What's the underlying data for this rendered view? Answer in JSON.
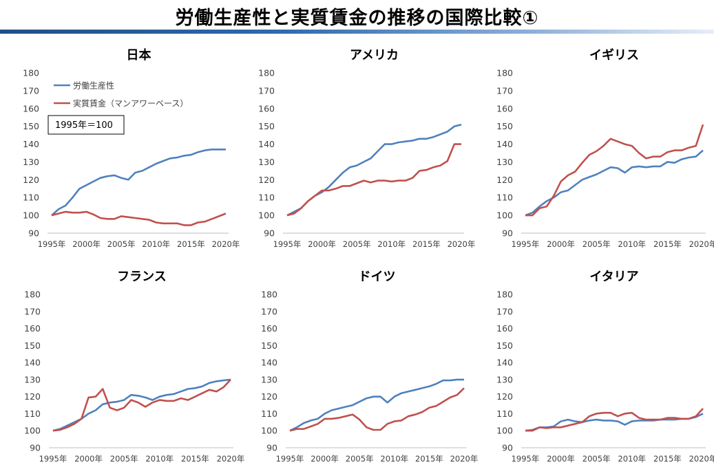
{
  "page": {
    "title": "労働生産性と実質賃金の推移の国際比較①"
  },
  "legend": {
    "series1": "労働生産性",
    "series2": "実質賃金（マンアワーベース）",
    "note": "1995年＝100"
  },
  "colors": {
    "productivity": "#4f81bd",
    "wage": "#c0504d",
    "axis": "#bfbfbf"
  },
  "chart_data": [
    {
      "type": "line",
      "title": "日本",
      "x": [
        1995,
        1996,
        1997,
        1998,
        1999,
        2000,
        2001,
        2002,
        2003,
        2004,
        2005,
        2006,
        2007,
        2008,
        2009,
        2010,
        2011,
        2012,
        2013,
        2014,
        2015,
        2016,
        2017,
        2018,
        2019,
        2020
      ],
      "xticks": [
        "1995年",
        "2000年",
        "2005年",
        "2010年",
        "2015年",
        "2020年"
      ],
      "yticks": [
        "90",
        "100",
        "110",
        "120",
        "130",
        "140",
        "150",
        "160",
        "170",
        "180"
      ],
      "ylim": [
        90,
        180
      ],
      "series": [
        {
          "name": "労働生産性",
          "values": [
            100,
            103.5,
            105.5,
            110,
            115,
            117,
            119,
            121,
            122,
            122.5,
            121,
            120,
            124,
            125,
            127,
            129,
            130.5,
            132,
            132.5,
            133.5,
            134,
            135.5,
            136.5,
            137,
            137,
            137
          ]
        },
        {
          "name": "実質賃金（マンアワーベース）",
          "values": [
            100,
            101,
            102,
            101.5,
            101.5,
            102,
            100.5,
            98.5,
            98,
            98,
            99.5,
            99,
            98.5,
            98,
            97.5,
            96,
            95.5,
            95.5,
            95.5,
            94.5,
            94.5,
            96,
            96.5,
            98,
            99.5,
            101
          ]
        }
      ]
    },
    {
      "type": "line",
      "title": "アメリカ",
      "x": [
        1995,
        1996,
        1997,
        1998,
        1999,
        2000,
        2001,
        2002,
        2003,
        2004,
        2005,
        2006,
        2007,
        2008,
        2009,
        2010,
        2011,
        2012,
        2013,
        2014,
        2015,
        2016,
        2017,
        2018,
        2019,
        2020
      ],
      "xticks": [
        "1995年",
        "2000年",
        "2005年",
        "2010年",
        "2015年",
        "2020年"
      ],
      "yticks": [
        "90",
        "100",
        "110",
        "120",
        "130",
        "140",
        "150",
        "160",
        "170",
        "180"
      ],
      "ylim": [
        90,
        180
      ],
      "series": [
        {
          "name": "労働生産性",
          "values": [
            100,
            102,
            104,
            108,
            111,
            113,
            116,
            120,
            124,
            127,
            128,
            130,
            132,
            136,
            140,
            140,
            141,
            141.5,
            142,
            143,
            143,
            144,
            145.5,
            147,
            150,
            151
          ]
        },
        {
          "name": "実質賃金（マンアワーベース）",
          "values": [
            100,
            101,
            104,
            108,
            111,
            114,
            114,
            115,
            116.5,
            116.5,
            118,
            119.5,
            118.5,
            119.5,
            119.5,
            119,
            119.5,
            119.5,
            121,
            125,
            125.5,
            127,
            128,
            130.5,
            140,
            140
          ]
        }
      ]
    },
    {
      "type": "line",
      "title": "イギリス",
      "x": [
        1995,
        1996,
        1997,
        1998,
        1999,
        2000,
        2001,
        2002,
        2003,
        2004,
        2005,
        2006,
        2007,
        2008,
        2009,
        2010,
        2011,
        2012,
        2013,
        2014,
        2015,
        2016,
        2017,
        2018,
        2019,
        2020
      ],
      "xticks": [
        "1995年",
        "2000年",
        "2005年",
        "2010年",
        "2015年",
        "2020年"
      ],
      "yticks": [
        "90",
        "100",
        "110",
        "120",
        "130",
        "140",
        "150",
        "160",
        "170",
        "180"
      ],
      "ylim": [
        90,
        180
      ],
      "series": [
        {
          "name": "労働生産性",
          "values": [
            100,
            101.5,
            105,
            108,
            110,
            113,
            114,
            117,
            120,
            121.5,
            123,
            125,
            127,
            126.5,
            124,
            127,
            127.5,
            127,
            127.5,
            127.5,
            130,
            129.5,
            131.5,
            132.5,
            133,
            136.5
          ]
        },
        {
          "name": "実質賃金（マンアワーベース）",
          "values": [
            100,
            100,
            104,
            105,
            111,
            119,
            122.5,
            124.5,
            129.5,
            134,
            136,
            139,
            143,
            141.5,
            140,
            139,
            135,
            132,
            133,
            133,
            135.5,
            136.5,
            136.5,
            138,
            139,
            151
          ]
        }
      ]
    },
    {
      "type": "line",
      "title": "フランス",
      "x": [
        1995,
        1996,
        1997,
        1998,
        1999,
        2000,
        2001,
        2002,
        2003,
        2004,
        2005,
        2006,
        2007,
        2008,
        2009,
        2010,
        2011,
        2012,
        2013,
        2014,
        2015,
        2016,
        2017,
        2018,
        2019,
        2020
      ],
      "xticks": [
        "1995年",
        "2000年",
        "2005年",
        "2010年",
        "2015年",
        "2020年"
      ],
      "yticks": [
        "90",
        "100",
        "110",
        "120",
        "130",
        "140",
        "150",
        "160",
        "170",
        "180"
      ],
      "ylim": [
        90,
        180
      ],
      "series": [
        {
          "name": "労働生産性",
          "values": [
            100,
            101,
            103,
            105,
            107,
            110,
            112,
            115.5,
            116.5,
            117,
            118,
            121,
            120.5,
            119.5,
            118,
            120,
            121,
            121.5,
            123,
            124.5,
            125,
            126,
            128,
            129,
            129.5,
            130
          ]
        },
        {
          "name": "実質賃金（マンアワーベース）",
          "values": [
            100,
            100.5,
            102,
            104,
            107,
            119.5,
            120,
            124.5,
            113.5,
            112,
            113.5,
            118,
            116.5,
            114,
            116.5,
            118,
            117.5,
            117.5,
            119,
            118,
            120,
            122,
            124,
            123,
            125.5,
            130
          ]
        }
      ]
    },
    {
      "type": "line",
      "title": "ドイツ",
      "x": [
        1995,
        1996,
        1997,
        1998,
        1999,
        2000,
        2001,
        2002,
        2003,
        2004,
        2005,
        2006,
        2007,
        2008,
        2009,
        2010,
        2011,
        2012,
        2013,
        2014,
        2015,
        2016,
        2017,
        2018,
        2019,
        2020
      ],
      "xticks": [
        "1995年",
        "2000年",
        "2005年",
        "2010年",
        "2015年",
        "2020年"
      ],
      "yticks": [
        "90",
        "100",
        "110",
        "120",
        "130",
        "140",
        "150",
        "160",
        "170",
        "180"
      ],
      "ylim": [
        90,
        180
      ],
      "series": [
        {
          "name": "労働生産性",
          "values": [
            100,
            102,
            104.5,
            106,
            107,
            110,
            112,
            113,
            114,
            115,
            117,
            119,
            120,
            120,
            116.5,
            120,
            122,
            123,
            124,
            125,
            126,
            127.5,
            129.5,
            129.5,
            130,
            130
          ]
        },
        {
          "name": "実質賃金（マンアワーベース）",
          "values": [
            100,
            101,
            101,
            102.5,
            104,
            107,
            107,
            107.5,
            108.5,
            109.5,
            106.5,
            102,
            100.5,
            100.5,
            104,
            105.5,
            106,
            108.5,
            109.5,
            111,
            113.5,
            114.5,
            117,
            119.5,
            121,
            125
          ]
        }
      ]
    },
    {
      "type": "line",
      "title": "イタリア",
      "x": [
        1995,
        1996,
        1997,
        1998,
        1999,
        2000,
        2001,
        2002,
        2003,
        2004,
        2005,
        2006,
        2007,
        2008,
        2009,
        2010,
        2011,
        2012,
        2013,
        2014,
        2015,
        2016,
        2017,
        2018,
        2019,
        2020
      ],
      "xticks": [
        "1995年",
        "2000年",
        "2005年",
        "2010年",
        "2015年",
        "2020年"
      ],
      "yticks": [
        "90",
        "100",
        "110",
        "120",
        "130",
        "140",
        "150",
        "160",
        "170",
        "180"
      ],
      "ylim": [
        90,
        180
      ],
      "series": [
        {
          "name": "労働生産性",
          "values": [
            100,
            100.5,
            102,
            102,
            102.5,
            105.5,
            106.5,
            105.5,
            105,
            106,
            106.5,
            106,
            106,
            105.5,
            103.5,
            105.5,
            106,
            106,
            106,
            106.5,
            106.5,
            106.5,
            107,
            107,
            108,
            110
          ]
        },
        {
          "name": "実質賃金（マンアワーベース）",
          "values": [
            100,
            100,
            102,
            101.5,
            102,
            102,
            103,
            104,
            105,
            108.5,
            110,
            110.5,
            110.5,
            108.5,
            110,
            110.5,
            107.5,
            106.5,
            106.5,
            106.5,
            107.5,
            107.5,
            107,
            107,
            108.5,
            113
          ]
        }
      ]
    }
  ]
}
